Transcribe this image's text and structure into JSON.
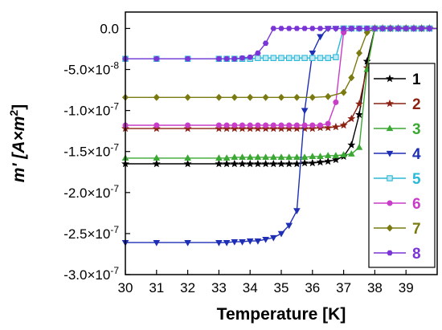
{
  "chart_data": {
    "type": "line",
    "title": "",
    "xlabel": "Temperature [K]",
    "ylabel_parts": {
      "main": "m' [A×m",
      "sup": "2",
      "end": "]"
    },
    "xlim": [
      30,
      40
    ],
    "ylim": [
      -3e-07,
      2e-08
    ],
    "x_ticks": [
      30,
      31,
      32,
      33,
      34,
      35,
      36,
      37,
      38,
      39
    ],
    "y_ticks": [
      {
        "value": 0,
        "label": "0.0"
      },
      {
        "value": -5e-08,
        "label": "-5.0×10",
        "exp": "-8"
      },
      {
        "value": -1e-07,
        "label": "-1.0×10",
        "exp": "-7"
      },
      {
        "value": -1.5e-07,
        "label": "-1.5×10",
        "exp": "-7"
      },
      {
        "value": -2e-07,
        "label": "-2.0×10",
        "exp": "-7"
      },
      {
        "value": -2.5e-07,
        "label": "-2.5×10",
        "exp": "-7"
      },
      {
        "value": -3e-07,
        "label": "-3.0×10",
        "exp": "-7"
      }
    ],
    "legend_position": "right",
    "series": [
      {
        "name": "1",
        "color": "#000000",
        "marker": "star",
        "points": [
          [
            30,
            -1.65e-07
          ],
          [
            31,
            -1.65e-07
          ],
          [
            32,
            -1.65e-07
          ],
          [
            33,
            -1.65e-07
          ],
          [
            33.25,
            -1.65e-07
          ],
          [
            33.5,
            -1.65e-07
          ],
          [
            33.75,
            -1.65e-07
          ],
          [
            34,
            -1.65e-07
          ],
          [
            34.25,
            -1.65e-07
          ],
          [
            34.5,
            -1.65e-07
          ],
          [
            34.75,
            -1.65e-07
          ],
          [
            35,
            -1.65e-07
          ],
          [
            35.25,
            -1.65e-07
          ],
          [
            35.5,
            -1.65e-07
          ],
          [
            35.75,
            -1.64e-07
          ],
          [
            36,
            -1.64e-07
          ],
          [
            36.25,
            -1.63e-07
          ],
          [
            36.5,
            -1.62e-07
          ],
          [
            36.75,
            -1.6e-07
          ],
          [
            37,
            -1.56e-07
          ],
          [
            37.25,
            -1.42e-07
          ],
          [
            37.5,
            -1.05e-07
          ],
          [
            37.75,
            -4e-08
          ],
          [
            38,
            0
          ],
          [
            38.25,
            0
          ],
          [
            38.5,
            0
          ],
          [
            38.75,
            0
          ],
          [
            39,
            0
          ],
          [
            39.25,
            0
          ],
          [
            39.5,
            0
          ],
          [
            39.75,
            0
          ],
          [
            40,
            0
          ]
        ]
      },
      {
        "name": "2",
        "color": "#8b2212",
        "marker": "star",
        "points": [
          [
            30,
            -1.22e-07
          ],
          [
            31,
            -1.22e-07
          ],
          [
            32,
            -1.22e-07
          ],
          [
            33,
            -1.22e-07
          ],
          [
            33.25,
            -1.22e-07
          ],
          [
            33.5,
            -1.22e-07
          ],
          [
            33.75,
            -1.22e-07
          ],
          [
            34,
            -1.22e-07
          ],
          [
            34.25,
            -1.22e-07
          ],
          [
            34.5,
            -1.22e-07
          ],
          [
            34.75,
            -1.22e-07
          ],
          [
            35,
            -1.22e-07
          ],
          [
            35.25,
            -1.22e-07
          ],
          [
            35.5,
            -1.22e-07
          ],
          [
            35.75,
            -1.22e-07
          ],
          [
            36,
            -1.22e-07
          ],
          [
            36.25,
            -1.21e-07
          ],
          [
            36.5,
            -1.21e-07
          ],
          [
            36.75,
            -1.2e-07
          ],
          [
            37,
            -1.18e-07
          ],
          [
            37.25,
            -1.1e-07
          ],
          [
            37.5,
            -9.2e-08
          ],
          [
            37.75,
            -4.8e-08
          ],
          [
            38,
            0
          ],
          [
            38.25,
            0
          ],
          [
            38.5,
            0
          ],
          [
            38.75,
            0
          ],
          [
            39,
            0
          ],
          [
            39.25,
            0
          ],
          [
            39.5,
            0
          ],
          [
            39.75,
            0
          ],
          [
            40,
            0
          ]
        ]
      },
      {
        "name": "3",
        "color": "#3aa832",
        "marker": "triangle-up",
        "points": [
          [
            30,
            -1.58e-07
          ],
          [
            31,
            -1.58e-07
          ],
          [
            32,
            -1.58e-07
          ],
          [
            33,
            -1.58e-07
          ],
          [
            33.25,
            -1.58e-07
          ],
          [
            33.5,
            -1.57e-07
          ],
          [
            33.75,
            -1.57e-07
          ],
          [
            34,
            -1.57e-07
          ],
          [
            34.25,
            -1.57e-07
          ],
          [
            34.5,
            -1.57e-07
          ],
          [
            34.75,
            -1.57e-07
          ],
          [
            35,
            -1.57e-07
          ],
          [
            35.25,
            -1.57e-07
          ],
          [
            35.5,
            -1.57e-07
          ],
          [
            35.75,
            -1.57e-07
          ],
          [
            36,
            -1.56e-07
          ],
          [
            36.25,
            -1.56e-07
          ],
          [
            36.5,
            -1.55e-07
          ],
          [
            36.75,
            -1.55e-07
          ],
          [
            37,
            -1.54e-07
          ],
          [
            37.25,
            -1.53e-07
          ],
          [
            37.5,
            -1.45e-07
          ],
          [
            37.75,
            -5e-08
          ],
          [
            38,
            0
          ],
          [
            38.25,
            0
          ],
          [
            38.5,
            0
          ],
          [
            38.75,
            0
          ],
          [
            39,
            0
          ],
          [
            39.25,
            0
          ],
          [
            39.5,
            0
          ],
          [
            39.75,
            0
          ],
          [
            40,
            0
          ]
        ]
      },
      {
        "name": "4",
        "color": "#1f2fb5",
        "marker": "triangle-down",
        "points": [
          [
            30,
            -2.61e-07
          ],
          [
            31,
            -2.61e-07
          ],
          [
            32,
            -2.61e-07
          ],
          [
            33,
            -2.61e-07
          ],
          [
            33.25,
            -2.61e-07
          ],
          [
            33.5,
            -2.6e-07
          ],
          [
            33.75,
            -2.6e-07
          ],
          [
            34,
            -2.59e-07
          ],
          [
            34.25,
            -2.59e-07
          ],
          [
            34.5,
            -2.57e-07
          ],
          [
            34.75,
            -2.55e-07
          ],
          [
            35,
            -2.5e-07
          ],
          [
            35.25,
            -2.4e-07
          ],
          [
            35.5,
            -2.22e-07
          ],
          [
            35.75,
            -1e-07
          ],
          [
            36,
            -3e-08
          ],
          [
            36.25,
            -1e-08
          ],
          [
            36.5,
            0
          ],
          [
            36.75,
            0
          ],
          [
            37,
            0
          ],
          [
            37.25,
            0
          ],
          [
            37.5,
            0
          ],
          [
            37.75,
            0
          ],
          [
            38,
            0
          ],
          [
            38.25,
            0
          ],
          [
            38.5,
            0
          ],
          [
            38.75,
            0
          ],
          [
            39,
            0
          ],
          [
            39.25,
            0
          ],
          [
            39.5,
            0
          ],
          [
            39.75,
            0
          ],
          [
            40,
            0
          ]
        ]
      },
      {
        "name": "5",
        "color": "#2ab8d8",
        "marker": "square",
        "points": [
          [
            30,
            -3.7e-08
          ],
          [
            31,
            -3.7e-08
          ],
          [
            32,
            -3.7e-08
          ],
          [
            33,
            -3.7e-08
          ],
          [
            33.25,
            -3.7e-08
          ],
          [
            33.5,
            -3.7e-08
          ],
          [
            33.75,
            -3.7e-08
          ],
          [
            34,
            -3.7e-08
          ],
          [
            34.25,
            -3.6e-08
          ],
          [
            34.5,
            -3.6e-08
          ],
          [
            34.75,
            -3.6e-08
          ],
          [
            35,
            -3.6e-08
          ],
          [
            35.25,
            -3.6e-08
          ],
          [
            35.5,
            -3.6e-08
          ],
          [
            35.75,
            -3.6e-08
          ],
          [
            36,
            -3.6e-08
          ],
          [
            36.25,
            -3.6e-08
          ],
          [
            36.5,
            -3.6e-08
          ],
          [
            36.75,
            -3.5e-08
          ],
          [
            37,
            0
          ],
          [
            37.25,
            0
          ],
          [
            37.5,
            0
          ],
          [
            37.75,
            0
          ],
          [
            38,
            0
          ],
          [
            38.25,
            0
          ],
          [
            38.5,
            0
          ],
          [
            38.75,
            0
          ],
          [
            39,
            0
          ],
          [
            39.25,
            0
          ],
          [
            39.5,
            0
          ],
          [
            39.75,
            0
          ],
          [
            40,
            0
          ]
        ]
      },
      {
        "name": "6",
        "color": "#c83cc8",
        "marker": "circle",
        "points": [
          [
            30,
            -1.18e-07
          ],
          [
            31,
            -1.18e-07
          ],
          [
            32,
            -1.18e-07
          ],
          [
            33,
            -1.18e-07
          ],
          [
            33.25,
            -1.18e-07
          ],
          [
            33.5,
            -1.18e-07
          ],
          [
            33.75,
            -1.18e-07
          ],
          [
            34,
            -1.18e-07
          ],
          [
            34.25,
            -1.18e-07
          ],
          [
            34.5,
            -1.18e-07
          ],
          [
            34.75,
            -1.18e-07
          ],
          [
            35,
            -1.18e-07
          ],
          [
            35.25,
            -1.18e-07
          ],
          [
            35.5,
            -1.18e-07
          ],
          [
            35.75,
            -1.18e-07
          ],
          [
            36,
            -1.18e-07
          ],
          [
            36.25,
            -1.18e-07
          ],
          [
            36.5,
            -1.16e-07
          ],
          [
            36.75,
            -9e-08
          ],
          [
            37,
            -5e-09
          ],
          [
            37.25,
            0
          ],
          [
            37.5,
            0
          ],
          [
            37.75,
            0
          ],
          [
            38,
            0
          ],
          [
            38.25,
            0
          ],
          [
            38.5,
            0
          ],
          [
            38.75,
            0
          ],
          [
            39,
            0
          ],
          [
            39.25,
            0
          ],
          [
            39.5,
            0
          ],
          [
            39.75,
            0
          ],
          [
            40,
            0
          ]
        ]
      },
      {
        "name": "7",
        "color": "#7a7a10",
        "marker": "diamond",
        "points": [
          [
            30,
            -8.4e-08
          ],
          [
            31,
            -8.4e-08
          ],
          [
            32,
            -8.4e-08
          ],
          [
            33,
            -8.4e-08
          ],
          [
            33.5,
            -8.4e-08
          ],
          [
            34,
            -8.4e-08
          ],
          [
            34.5,
            -8.4e-08
          ],
          [
            35,
            -8.4e-08
          ],
          [
            35.5,
            -8.4e-08
          ],
          [
            36,
            -8.4e-08
          ],
          [
            36.5,
            -8.3e-08
          ],
          [
            37,
            -7.8e-08
          ],
          [
            37.25,
            -6e-08
          ],
          [
            37.5,
            -3e-08
          ],
          [
            37.75,
            -5e-09
          ],
          [
            38,
            0
          ],
          [
            38.5,
            0
          ],
          [
            39,
            0
          ],
          [
            39.5,
            0
          ],
          [
            40,
            0
          ]
        ]
      },
      {
        "name": "8",
        "color": "#7a35d6",
        "marker": "hexagon",
        "points": [
          [
            30,
            -3.7e-08
          ],
          [
            31,
            -3.7e-08
          ],
          [
            32,
            -3.7e-08
          ],
          [
            33,
            -3.7e-08
          ],
          [
            33.25,
            -3.7e-08
          ],
          [
            33.5,
            -3.7e-08
          ],
          [
            33.75,
            -3.6e-08
          ],
          [
            34,
            -3.5e-08
          ],
          [
            34.25,
            -3e-08
          ],
          [
            34.5,
            -1.8e-08
          ],
          [
            34.75,
            0
          ],
          [
            35,
            0
          ],
          [
            35.25,
            0
          ],
          [
            35.5,
            0
          ],
          [
            35.75,
            0
          ],
          [
            36,
            0
          ],
          [
            36.25,
            0
          ],
          [
            36.5,
            0
          ],
          [
            36.75,
            0
          ],
          [
            37,
            0
          ],
          [
            37.25,
            0
          ],
          [
            37.5,
            0
          ],
          [
            37.75,
            0
          ],
          [
            38,
            0
          ],
          [
            38.25,
            0
          ],
          [
            38.5,
            0
          ],
          [
            38.75,
            0
          ],
          [
            39,
            0
          ],
          [
            39.25,
            0
          ],
          [
            39.5,
            0
          ],
          [
            39.75,
            0
          ],
          [
            40,
            0
          ]
        ]
      }
    ]
  }
}
